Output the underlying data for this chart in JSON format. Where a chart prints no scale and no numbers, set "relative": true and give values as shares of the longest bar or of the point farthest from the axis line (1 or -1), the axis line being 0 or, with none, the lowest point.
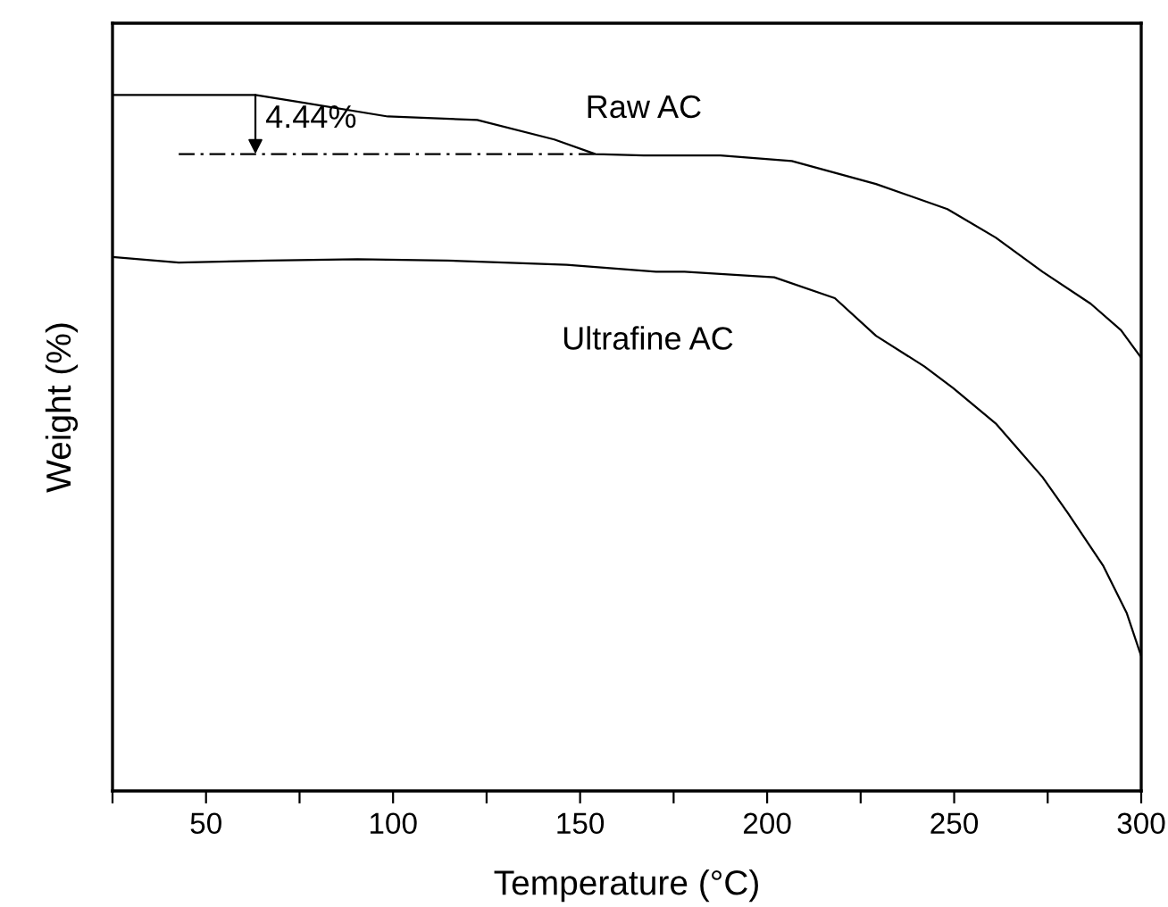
{
  "chart_data": {
    "type": "line",
    "relative": true,
    "xlabel": "Temperature (°C)",
    "ylabel": "Weight (%)",
    "xlim": [
      25,
      300
    ],
    "xticks": [
      {
        "value": 25,
        "label": null
      },
      50,
      {
        "value": 75,
        "label": null
      },
      100,
      {
        "value": 125,
        "label": null
      },
      150,
      {
        "value": 175,
        "label": null
      },
      200,
      {
        "value": 225,
        "label": null
      },
      250,
      {
        "value": 275,
        "label": null
      },
      300
    ],
    "grid": false,
    "legend": false,
    "marker": "none",
    "line_style": "solid",
    "series": [
      {
        "name": "Raw AC",
        "color": "#000000",
        "x": [
          25,
          63.2,
          74.7,
          98.6,
          122.5,
          143.1,
          154.1,
          167.0,
          187.5,
          206.6,
          229.1,
          248.2,
          261.1,
          273.6,
          286.5,
          294.6,
          299.9
        ],
        "values": [
          1.0,
          1.0,
          0.99,
          0.969,
          0.964,
          0.936,
          0.915,
          0.913,
          0.913,
          0.905,
          0.872,
          0.836,
          0.795,
          0.746,
          0.7,
          0.662,
          0.623
        ]
      },
      {
        "name": "Ultrafine AC",
        "color": "#000000",
        "x": [
          25,
          42.7,
          66.6,
          90.5,
          114.4,
          146.4,
          170.3,
          177.9,
          201.9,
          218.1,
          229.1,
          242.0,
          249.7,
          261.1,
          273.6,
          280.3,
          289.9,
          296.1,
          299.9
        ],
        "values": [
          0.767,
          0.759,
          0.762,
          0.764,
          0.762,
          0.756,
          0.746,
          0.746,
          0.738,
          0.708,
          0.654,
          0.61,
          0.579,
          0.528,
          0.451,
          0.4,
          0.323,
          0.256,
          0.195
        ]
      },
      {
        "color": "#000000",
        "line_style": "dashdot",
        "x": [
          42.7,
          154.1
        ],
        "values": [
          0.915,
          0.915
        ]
      }
    ],
    "annotations": [
      {
        "text": "4.44%",
        "x": 63.2,
        "y": 0.915
      }
    ]
  }
}
